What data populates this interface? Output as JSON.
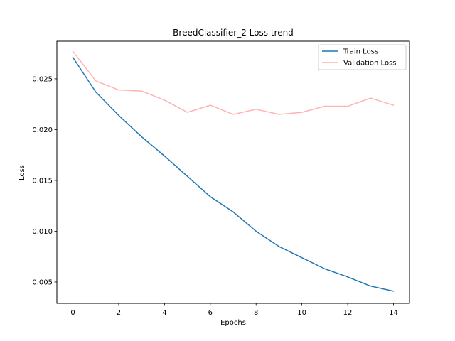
{
  "chart_data": {
    "type": "line",
    "title": "BreedClassifier_2 Loss trend",
    "xlabel": "Epochs",
    "ylabel": "Loss",
    "x": [
      0,
      1,
      2,
      3,
      4,
      5,
      6,
      7,
      8,
      9,
      10,
      11,
      12,
      13,
      14
    ],
    "xlim": [
      -0.7,
      14.7
    ],
    "ylim": [
      0.0029,
      0.0287
    ],
    "xticks": [
      0,
      2,
      4,
      6,
      8,
      10,
      12,
      14
    ],
    "yticks": [
      0.005,
      0.01,
      0.015,
      0.02,
      0.025
    ],
    "ytick_labels": [
      "0.005",
      "0.010",
      "0.015",
      "0.020",
      "0.025"
    ],
    "grid": false,
    "legend_position": "top-right",
    "series": [
      {
        "name": "Train Loss",
        "color": "#1f77b4",
        "values": [
          0.0271,
          0.0237,
          0.0214,
          0.0193,
          0.0174,
          0.0154,
          0.0134,
          0.0119,
          0.01,
          0.0085,
          0.0074,
          0.0063,
          0.0055,
          0.0046,
          0.0041
        ]
      },
      {
        "name": "Validation Loss",
        "color": "#ffb3b3",
        "values": [
          0.0277,
          0.0248,
          0.0239,
          0.0238,
          0.0229,
          0.0217,
          0.0224,
          0.0215,
          0.022,
          0.0215,
          0.0217,
          0.0223,
          0.0223,
          0.0231,
          0.0224
        ]
      }
    ]
  }
}
